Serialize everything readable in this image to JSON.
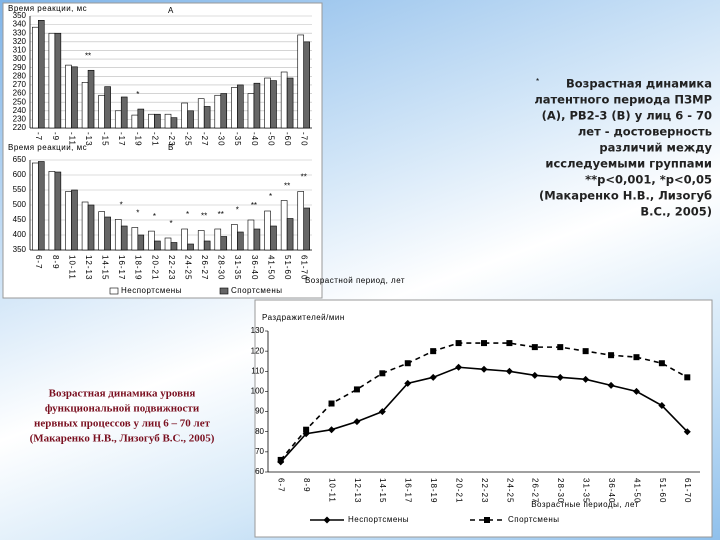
{
  "chart_data": [
    {
      "type": "bar",
      "title": "Время реакции, мс",
      "panel": "А",
      "categories": [
        "-7",
        "-9",
        "-11",
        "-13",
        "-15",
        "-17",
        "-19",
        "-21",
        "-23",
        "-25",
        "-27",
        "-30",
        "-35",
        "-40",
        "-50",
        "-60",
        "-70"
      ],
      "series": [
        {
          "name": "Неспортсмены",
          "color": "#ffffff",
          "values": [
            337,
            330,
            293,
            273,
            258,
            240,
            235,
            236,
            236,
            249,
            254,
            258,
            267,
            260,
            278,
            285,
            328
          ]
        },
        {
          "name": "Спортсмены",
          "color": "#666666",
          "values": [
            345,
            330,
            291,
            287,
            268,
            256,
            242,
            236,
            232,
            240,
            245,
            260,
            270,
            272,
            275,
            278,
            320
          ]
        }
      ],
      "significance": [
        null,
        null,
        null,
        "**",
        null,
        null,
        "*",
        null,
        null,
        null,
        null,
        null,
        null,
        null,
        null,
        null,
        null
      ],
      "ylim": [
        220,
        350
      ],
      "yticks": [
        220,
        230,
        240,
        250,
        260,
        270,
        280,
        290,
        300,
        310,
        320,
        330,
        340,
        350
      ],
      "grid": true
    },
    {
      "type": "bar",
      "title": "Время реакции, мс",
      "panel": "В",
      "x_label": "Возрастной период, лет",
      "categories": [
        "6-7",
        "8-9",
        "10-11",
        "12-13",
        "14-15",
        "16-17",
        "18-19",
        "20-21",
        "22-23",
        "24-25",
        "26-27",
        "28-30",
        "31-35",
        "36-40",
        "41-50",
        "51-60",
        "61-70"
      ],
      "series": [
        {
          "name": "Неспортсмены",
          "color": "#ffffff",
          "values": [
            640,
            612,
            545,
            510,
            478,
            452,
            425,
            413,
            390,
            420,
            415,
            420,
            435,
            450,
            480,
            515,
            545
          ]
        },
        {
          "name": "Спортсмены",
          "color": "#666666",
          "values": [
            645,
            610,
            550,
            500,
            460,
            430,
            400,
            380,
            375,
            370,
            380,
            395,
            410,
            420,
            430,
            455,
            490
          ]
        }
      ],
      "significance": [
        null,
        null,
        null,
        null,
        null,
        "*",
        "*",
        "*",
        "*",
        "*",
        "**",
        "**",
        "*",
        "**",
        "*",
        "**",
        "**"
      ],
      "ylim": [
        350,
        650
      ],
      "yticks": [
        350,
        400,
        450,
        500,
        550,
        600,
        650
      ],
      "grid": true,
      "legend": "bottom"
    },
    {
      "type": "line",
      "title": "Раздражителей/мин",
      "x_label": "Возрастные периоды, лет",
      "categories": [
        "6-7",
        "8-9",
        "10-11",
        "12-13",
        "14-15",
        "16-17",
        "18-19",
        "20-21",
        "22-23",
        "24-25",
        "26-27",
        "28-30",
        "31-35",
        "36-40",
        "41-50",
        "51-60",
        "61-70"
      ],
      "series": [
        {
          "name": "Неспортсмены",
          "color": "#000000",
          "line_style": "solid",
          "marker": "diamond",
          "values": [
            65,
            79,
            81,
            85,
            90,
            104,
            107,
            112,
            111,
            110,
            108,
            107,
            106,
            103,
            100,
            93,
            80
          ]
        },
        {
          "name": "Спортсмены",
          "color": "#000000",
          "line_style": "dashed",
          "marker": "square",
          "values": [
            66,
            81,
            94,
            101,
            109,
            114,
            120,
            124,
            124,
            124,
            122,
            122,
            120,
            118,
            117,
            114,
            107
          ]
        }
      ],
      "ylim": [
        60,
        130
      ],
      "yticks": [
        60,
        70,
        80,
        90,
        100,
        110,
        120,
        130
      ],
      "grid": false,
      "legend": "bottom"
    }
  ],
  "captions": {
    "bullet": "*",
    "right": [
      "Возрастная динамика",
      "латентного периода ПЗМР",
      "(А), РВ2-3 (В) у лиц 6 - 70",
      "лет - достоверность",
      "различий между",
      "исследуемыми группами",
      "**p<0,001, *p<0,05",
      "(Макаренко Н.В., Лизогуб",
      "В.С., 2005)"
    ],
    "left": [
      "Возрастная динамика уровня",
      "функциональной подвижности",
      "нервных процессов у лиц 6 – 70 лет",
      "(Макаренко Н.В., Лизогуб В.С., 2005)"
    ]
  }
}
